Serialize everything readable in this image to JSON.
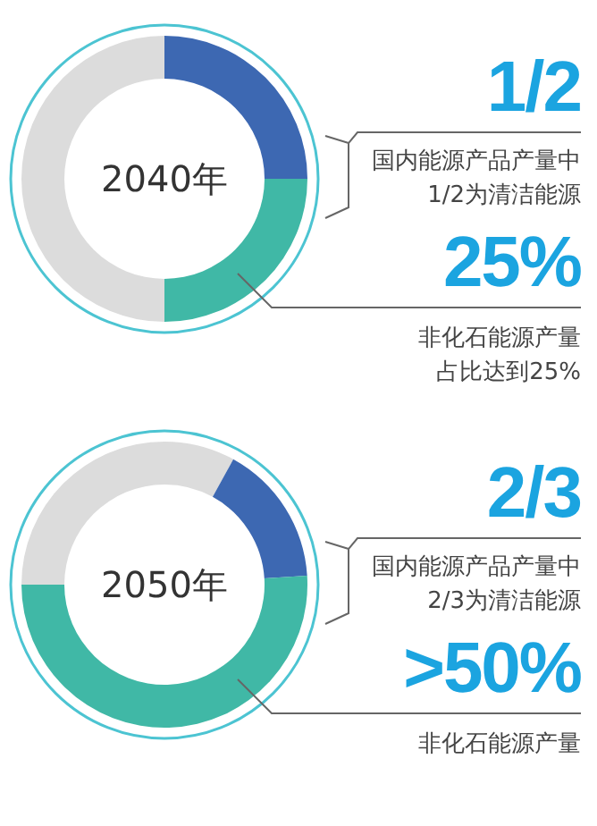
{
  "chart_data": [
    {
      "type": "donut",
      "title": "2040年",
      "categories": [
        null,
        null,
        null
      ],
      "values": [
        25,
        25,
        50
      ],
      "colors": [
        "#3d68b2",
        "#40b8a6",
        "#dcdcdc"
      ],
      "annotations": [
        "1/2",
        "国内能源产品产量中",
        "1/2为清洁能源",
        "25%",
        "非化石能源产量",
        "占比达到25%"
      ]
    },
    {
      "type": "donut",
      "title": "2050年",
      "categories": [
        null,
        null,
        null,
        null
      ],
      "values": [
        8,
        16,
        51,
        25
      ],
      "colors": [
        "#dcdcdc",
        "#3d68b2",
        "#40b8a6",
        "#dcdcdc"
      ],
      "annotations": [
        "2/3",
        "国内能源产品产量中",
        "2/3为清洁能源",
        ">50%",
        "非化石能源产量"
      ]
    }
  ]
}
